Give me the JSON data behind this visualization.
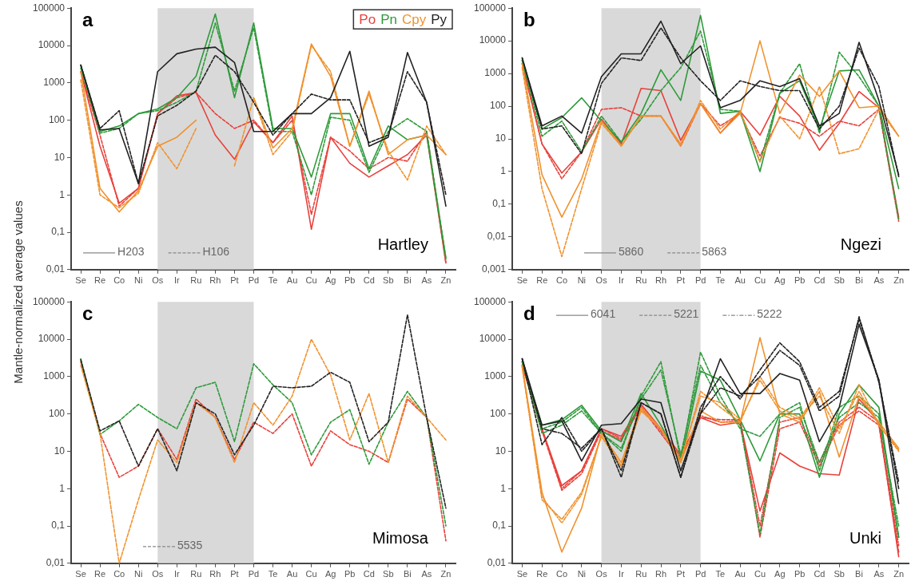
{
  "chart_data": [
    {
      "type": "line",
      "title": "a",
      "subtitle": "Hartley",
      "ylabel": "Mantle-normalized average values",
      "log": true,
      "grid": false,
      "legend": "top right",
      "categories": [
        "Se",
        "Re",
        "Co",
        "Ni",
        "Os",
        "Ir",
        "Ru",
        "Rh",
        "Pt",
        "Pd",
        "Te",
        "Au",
        "Cu",
        "Ag",
        "Pb",
        "Cd",
        "Sb",
        "Bi",
        "As",
        "Zn"
      ],
      "ylim": [
        0.01,
        100000
      ],
      "yticks": [
        {
          "value": 0.01,
          "label": "0,01"
        },
        {
          "value": 0.1,
          "label": "0,1"
        },
        1,
        10,
        100,
        1000,
        10000,
        100000
      ],
      "bands": [
        {
          "axis": "x",
          "from": "Os",
          "to": "Pd",
          "color": "#d9d9d9"
        }
      ],
      "annotations": [
        "H203",
        "H106"
      ],
      "series": [
        {
          "name": "Po",
          "color": "#e8413b",
          "line_style": "solid",
          "values": [
            2000,
            20,
            0.6,
            1.5,
            150,
            450,
            550,
            40,
            9,
            90,
            25,
            130,
            0.12,
            35,
            7,
            3,
            6,
            12,
            40,
            0.015
          ]
        },
        {
          "color": "#e8413b",
          "line_style": "dashed",
          "values": [
            2000,
            40,
            0.5,
            1.5,
            150,
            400,
            550,
            150,
            60,
            100,
            25,
            100,
            0.3,
            35,
            15,
            5,
            10,
            8,
            50,
            0.015
          ]
        },
        {
          "name": "Pn",
          "color": "#2e9a3a",
          "line_style": "solid",
          "values": [
            3000,
            50,
            70,
            150,
            200,
            400,
            1500,
            70000,
            400,
            40000,
            60,
            60,
            3,
            150,
            150,
            5,
            70,
            30,
            40,
            0.02
          ]
        },
        {
          "color": "#2e9a3a",
          "line_style": "dashed",
          "values": [
            2500,
            45,
            60,
            150,
            180,
            300,
            600,
            40000,
            600,
            30000,
            50,
            50,
            1,
            120,
            100,
            4,
            50,
            110,
            50,
            0.02
          ]
        },
        {
          "name": "Cpy",
          "color": "#f0922e",
          "line_style": "solid",
          "values": [
            2000,
            1.5,
            0.35,
            1.3,
            20,
            35,
            100,
            null,
            null,
            400,
            18,
            60,
            11000,
            1500,
            20,
            600,
            12,
            30,
            40,
            12
          ]
        },
        {
          "color": "#f0922e",
          "line_style": "dashed",
          "values": [
            1200,
            1,
            0.45,
            1.1,
            25,
            5,
            60,
            null,
            6,
            400,
            12,
            50,
            10000,
            2000,
            20,
            500,
            15,
            2.5,
            70,
            12
          ]
        },
        {
          "name": "Py",
          "color": "#222222",
          "line_style": "solid",
          "values": [
            3000,
            55,
            60,
            2,
            2000,
            6000,
            8000,
            9000,
            3500,
            50,
            50,
            150,
            150,
            400,
            7000,
            20,
            35,
            6500,
            300,
            0.5
          ]
        },
        {
          "color": "#222222",
          "line_style": "dashed",
          "values": [
            3000,
            60,
            180,
            2,
            130,
            250,
            600,
            5500,
            2000,
            300,
            40,
            150,
            500,
            350,
            350,
            25,
            40,
            2000,
            300,
            1
          ]
        }
      ]
    },
    {
      "type": "line",
      "title": "b",
      "subtitle": "Ngezi",
      "log": true,
      "grid": false,
      "categories": [
        "Se",
        "Re",
        "Co",
        "Ni",
        "Os",
        "Ir",
        "Ru",
        "Rh",
        "Pt",
        "Pd",
        "Te",
        "Au",
        "Cu",
        "Ag",
        "Pb",
        "Cd",
        "Sb",
        "Bi",
        "As",
        "Zn"
      ],
      "ylim": [
        0.001,
        100000
      ],
      "yticks": [
        {
          "value": 0.001,
          "label": "0,001"
        },
        {
          "value": 0.01,
          "label": "0,01"
        },
        {
          "value": 0.1,
          "label": "0,1"
        },
        1,
        10,
        100,
        1000,
        10000,
        100000
      ],
      "bands": [
        {
          "axis": "x",
          "from": "Os",
          "to": "Pd",
          "color": "#d9d9d9"
        }
      ],
      "annotations": [
        "5860",
        "5863"
      ],
      "series": [
        {
          "color": "#e8413b",
          "line_style": "solid",
          "values": [
            2000,
            7,
            0.9,
            4,
            40,
            7,
            350,
            300,
            9,
            120,
            15,
            70,
            13,
            200,
            50,
            4.5,
            30,
            280,
            90,
            0.04
          ]
        },
        {
          "color": "#e8413b",
          "line_style": "dashed",
          "values": [
            2000,
            7,
            0.6,
            4,
            80,
            90,
            50,
            50,
            6,
            120,
            25,
            60,
            3,
            45,
            30,
            12,
            35,
            25,
            80,
            0.03
          ]
        },
        {
          "color": "#2e9a3a",
          "line_style": "solid",
          "values": [
            2500,
            20,
            45,
            180,
            35,
            8,
            60,
            1300,
            150,
            60000,
            60,
            70,
            1,
            250,
            600,
            20,
            1200,
            1300,
            100,
            0.3
          ]
        },
        {
          "color": "#2e9a3a",
          "line_style": "dashed",
          "values": [
            2500,
            12,
            35,
            4,
            50,
            8,
            40,
            300,
            1500,
            20000,
            80,
            70,
            2,
            250,
            2000,
            15,
            4500,
            800,
            100,
            0.035
          ]
        },
        {
          "color": "#f0922e",
          "line_style": "solid",
          "values": [
            2000,
            0.8,
            0.04,
            0.6,
            35,
            6,
            50,
            50,
            7,
            120,
            15,
            60,
            10000,
            60,
            900,
            200,
            1200,
            90,
            100,
            12
          ]
        },
        {
          "color": "#f0922e",
          "line_style": "dashed",
          "values": [
            1500,
            0.3,
            0.0025,
            0.3,
            30,
            6,
            50,
            50,
            6,
            150,
            20,
            70,
            2,
            50,
            10,
            400,
            3.5,
            5,
            80,
            12
          ]
        },
        {
          "color": "#222222",
          "line_style": "solid",
          "values": [
            3000,
            25,
            50,
            15,
            800,
            4000,
            4000,
            40000,
            2000,
            7000,
            90,
            150,
            600,
            400,
            700,
            25,
            60,
            9000,
            150,
            0.8
          ]
        },
        {
          "color": "#222222",
          "line_style": "dashed",
          "values": [
            3000,
            20,
            25,
            3.5,
            500,
            3000,
            2500,
            25000,
            3000,
            600,
            150,
            600,
            400,
            300,
            300,
            20,
            100,
            6000,
            400,
            0.7
          ]
        }
      ]
    },
    {
      "type": "line",
      "title": "c",
      "subtitle": "Mimosa",
      "log": true,
      "grid": false,
      "categories": [
        "Se",
        "Re",
        "Co",
        "Ni",
        "Os",
        "Ir",
        "Ru",
        "Rh",
        "Pt",
        "Pd",
        "Te",
        "Au",
        "Cu",
        "Ag",
        "Pb",
        "Cd",
        "Sb",
        "Bi",
        "As",
        "Zn"
      ],
      "ylim": [
        0.01,
        100000
      ],
      "yticks": [
        {
          "value": 0.01,
          "label": "0,01"
        },
        {
          "value": 0.1,
          "label": "0,1"
        },
        1,
        10,
        100,
        1000,
        10000,
        100000
      ],
      "bands": [
        {
          "axis": "x",
          "from": "Os",
          "to": "Pd",
          "color": "#d9d9d9"
        }
      ],
      "annotations": [
        "5535"
      ],
      "series": [
        {
          "color": "#e8413b",
          "line_style": "dashed",
          "values": [
            2500,
            30,
            2,
            4,
            40,
            6,
            250,
            80,
            6,
            60,
            30,
            100,
            4,
            35,
            15,
            10,
            5,
            250,
            80,
            0.04
          ]
        },
        {
          "color": "#2e9a3a",
          "line_style": "dashed",
          "values": [
            3000,
            28,
            65,
            180,
            80,
            40,
            500,
            700,
            18,
            2200,
            600,
            200,
            8,
            60,
            130,
            4.5,
            60,
            400,
            80,
            0.1
          ]
        },
        {
          "color": "#f0922e",
          "line_style": "dashed",
          "values": [
            2000,
            30,
            0.01,
            0.5,
            20,
            5,
            200,
            80,
            5,
            200,
            50,
            300,
            10000,
            1100,
            20,
            350,
            5,
            300,
            80,
            20
          ]
        },
        {
          "color": "#222222",
          "line_style": "dashed",
          "values": [
            2800,
            35,
            65,
            4,
            40,
            3,
            200,
            100,
            8,
            50,
            550,
            500,
            550,
            1300,
            700,
            18,
            60,
            45000,
            80,
            0.3
          ]
        }
      ]
    },
    {
      "type": "line",
      "title": "d",
      "subtitle": "Unki",
      "log": true,
      "grid": false,
      "categories": [
        "Se",
        "Re",
        "Co",
        "Ni",
        "Os",
        "Ir",
        "Ru",
        "Rh",
        "Pt",
        "Pd",
        "Te",
        "Au",
        "Cu",
        "Ag",
        "Pb",
        "Cd",
        "Sb",
        "Bi",
        "As",
        "Zn"
      ],
      "ylim": [
        0.01,
        100000
      ],
      "yticks": [
        {
          "value": 0.01,
          "label": "0,01"
        },
        {
          "value": 0.1,
          "label": "0,1"
        },
        1,
        10,
        100,
        1000,
        10000,
        100000
      ],
      "bands": [
        {
          "axis": "x",
          "from": "Os",
          "to": "Pd",
          "color": "#d9d9d9"
        }
      ],
      "annotations": [
        "6041",
        "5221",
        "5222"
      ],
      "series": [
        {
          "color": "#e8413b",
          "line_style": "solid",
          "values": [
            2000,
            40,
            1.2,
            3,
            40,
            25,
            180,
            40,
            8,
            80,
            50,
            60,
            0.25,
            9,
            4,
            2.5,
            2.3,
            250,
            60,
            0.015
          ]
        },
        {
          "color": "#e8413b",
          "line_style": "dashed",
          "values": [
            2000,
            35,
            0.9,
            2.5,
            35,
            20,
            150,
            30,
            6,
            80,
            70,
            70,
            0.05,
            40,
            60,
            4,
            50,
            120,
            50,
            0.02
          ]
        },
        {
          "color": "#e8413b",
          "line_style": "dotted",
          "values": [
            2000,
            40,
            1,
            3,
            40,
            22,
            160,
            35,
            7,
            90,
            60,
            65,
            0.1,
            60,
            80,
            5,
            60,
            150,
            60,
            0.03
          ]
        },
        {
          "color": "#2e9a3a",
          "line_style": "solid",
          "values": [
            2500,
            50,
            70,
            170,
            35,
            18,
            350,
            50,
            5,
            1400,
            800,
            70,
            5.5,
            100,
            100,
            2,
            100,
            600,
            150,
            0.05
          ]
        },
        {
          "color": "#2e9a3a",
          "line_style": "dashed",
          "values": [
            2500,
            40,
            60,
            150,
            30,
            10,
            300,
            2500,
            6,
            4500,
            300,
            40,
            25,
            100,
            200,
            3,
            150,
            300,
            100,
            0.05
          ]
        },
        {
          "color": "#2e9a3a",
          "line_style": "dotted",
          "values": [
            2500,
            30,
            50,
            120,
            30,
            12,
            250,
            1500,
            8,
            2000,
            200,
            50,
            0.06,
            80,
            150,
            5,
            80,
            200,
            80,
            0.1
          ]
        },
        {
          "color": "#f0922e",
          "line_style": "solid",
          "values": [
            2000,
            0.8,
            0.02,
            0.3,
            30,
            5,
            150,
            40,
            5,
            120,
            60,
            60,
            11000,
            100,
            60,
            400,
            7,
            300,
            60,
            12
          ]
        },
        {
          "color": "#f0922e",
          "line_style": "dashed",
          "values": [
            1800,
            0.5,
            0.15,
            0.8,
            25,
            4,
            120,
            40,
            5,
            400,
            150,
            60,
            1000,
            150,
            80,
            300,
            30,
            600,
            50,
            10
          ]
        },
        {
          "color": "#f0922e",
          "line_style": "dotted",
          "values": [
            1800,
            0.6,
            0.12,
            0.7,
            25,
            4,
            130,
            40,
            6,
            300,
            200,
            70,
            800,
            120,
            70,
            500,
            40,
            400,
            50,
            11
          ]
        },
        {
          "color": "#222222",
          "line_style": "solid",
          "values": [
            3000,
            50,
            65,
            5.5,
            50,
            55,
            250,
            200,
            3,
            100,
            3000,
            350,
            350,
            1200,
            800,
            18,
            150,
            25000,
            800,
            0.4
          ]
        },
        {
          "color": "#222222",
          "line_style": "dashed",
          "values": [
            3000,
            15,
            80,
            10,
            40,
            2,
            200,
            100,
            2,
            150,
            1000,
            250,
            1500,
            8000,
            2500,
            150,
            400,
            35000,
            800,
            1
          ]
        },
        {
          "color": "#222222",
          "line_style": "dotted",
          "values": [
            3000,
            40,
            30,
            12,
            40,
            3,
            200,
            100,
            2,
            100,
            500,
            300,
            1000,
            5000,
            2000,
            120,
            300,
            40000,
            700,
            1.5
          ]
        }
      ]
    }
  ]
}
